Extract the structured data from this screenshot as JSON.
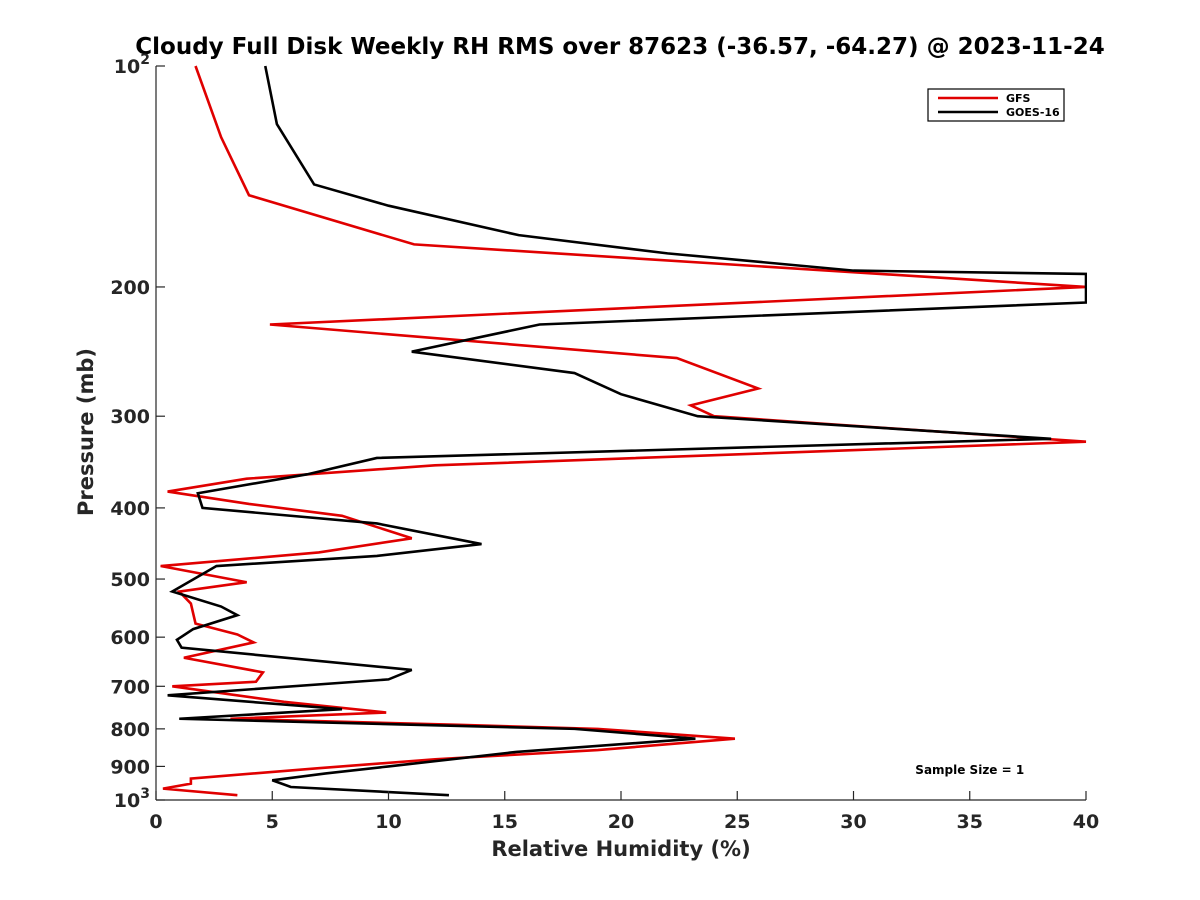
{
  "chart_data": {
    "type": "line",
    "title": "Cloudy Full Disk Weekly RH RMS over 87623 (-36.57, -64.27) @ 2023-11-24",
    "xlabel": "Relative Humidity (%)",
    "ylabel": "Pressure (mb)",
    "xlim": [
      0,
      40
    ],
    "ylim": [
      100,
      1000
    ],
    "yscale": "log",
    "y_reversed": true,
    "grid": false,
    "legend_position": "top-right",
    "x_ticks": [
      "0",
      "5",
      "10",
      "15",
      "20",
      "25",
      "30",
      "35",
      "40"
    ],
    "y_ticks": [
      {
        "value": 100,
        "base": "10",
        "exp": "2"
      },
      {
        "value": 200,
        "label": "200"
      },
      {
        "value": 300,
        "label": "300"
      },
      {
        "value": 400,
        "label": "400"
      },
      {
        "value": 500,
        "label": "500"
      },
      {
        "value": 600,
        "label": "600"
      },
      {
        "value": 700,
        "label": "700"
      },
      {
        "value": 800,
        "label": "800"
      },
      {
        "value": 900,
        "label": "900"
      },
      {
        "value": 1000,
        "base": "10",
        "exp": "3"
      }
    ],
    "series": [
      {
        "name": "GFS",
        "color": "#e00000",
        "points": [
          [
            1.7,
            100
          ],
          [
            2.8,
            125
          ],
          [
            4.0,
            150
          ],
          [
            11.1,
            175
          ],
          [
            40,
            200
          ],
          [
            4.9,
            225
          ],
          [
            22.4,
            250
          ],
          [
            25.9,
            275
          ],
          [
            23.0,
            290
          ],
          [
            24.0,
            300
          ],
          [
            40,
            325
          ],
          [
            12.0,
            350
          ],
          [
            3.9,
            365
          ],
          [
            0.5,
            380
          ],
          [
            4.0,
            395
          ],
          [
            8.0,
            410
          ],
          [
            11.0,
            440
          ],
          [
            7.0,
            460
          ],
          [
            0.2,
            480
          ],
          [
            3.9,
            505
          ],
          [
            1.0,
            520
          ],
          [
            1.5,
            540
          ],
          [
            1.7,
            575
          ],
          [
            3.5,
            595
          ],
          [
            4.2,
            610
          ],
          [
            1.2,
            640
          ],
          [
            4.6,
            670
          ],
          [
            4.3,
            690
          ],
          [
            0.7,
            700
          ],
          [
            5.5,
            735
          ],
          [
            9.9,
            760
          ],
          [
            3.2,
            775
          ],
          [
            13.0,
            790
          ],
          [
            19.0,
            800
          ],
          [
            24.9,
            825
          ],
          [
            19.0,
            855
          ],
          [
            12.0,
            880
          ],
          [
            7.0,
            905
          ],
          [
            1.5,
            935
          ],
          [
            1.5,
            950
          ],
          [
            0.3,
            965
          ],
          [
            3.5,
            985
          ]
        ]
      },
      {
        "name": "GOES-16",
        "color": "#000000",
        "points": [
          [
            4.7,
            100
          ],
          [
            5.2,
            120
          ],
          [
            6.8,
            145
          ],
          [
            10.0,
            155
          ],
          [
            15.6,
            170
          ],
          [
            22.0,
            180
          ],
          [
            30.0,
            190
          ],
          [
            40,
            192
          ],
          [
            40,
            210
          ],
          [
            16.5,
            225
          ],
          [
            11.0,
            245
          ],
          [
            18.0,
            262
          ],
          [
            20.0,
            280
          ],
          [
            23.3,
            300
          ],
          [
            38.5,
            322
          ],
          [
            9.5,
            342
          ],
          [
            6.5,
            360
          ],
          [
            1.8,
            382
          ],
          [
            2.0,
            400
          ],
          [
            9.5,
            420
          ],
          [
            14.0,
            448
          ],
          [
            9.5,
            465
          ],
          [
            2.6,
            480
          ],
          [
            0.7,
            520
          ],
          [
            2.8,
            545
          ],
          [
            3.5,
            560
          ],
          [
            1.6,
            585
          ],
          [
            0.9,
            605
          ],
          [
            1.1,
            620
          ],
          [
            11.0,
            665
          ],
          [
            10.0,
            685
          ],
          [
            0.5,
            720
          ],
          [
            8.0,
            752
          ],
          [
            1.0,
            775
          ],
          [
            18.0,
            800
          ],
          [
            23.2,
            825
          ],
          [
            15.5,
            860
          ],
          [
            10.0,
            900
          ],
          [
            7.3,
            920
          ],
          [
            5.0,
            940
          ],
          [
            5.8,
            960
          ],
          [
            12.6,
            985
          ]
        ]
      }
    ],
    "annotations": [
      {
        "text": "Sample Size = 1",
        "x": 35,
        "y": 910
      }
    ]
  }
}
